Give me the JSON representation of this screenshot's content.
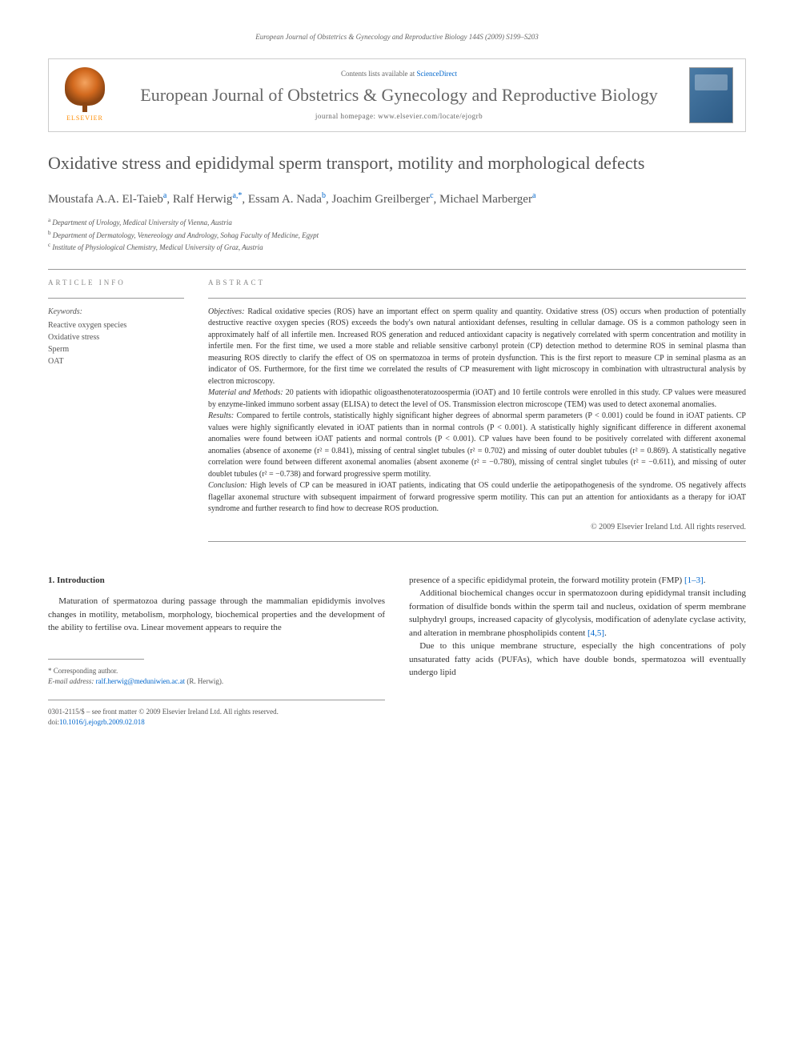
{
  "running_header": "European Journal of Obstetrics & Gynecology and Reproductive Biology 144S (2009) S199–S203",
  "journal_box": {
    "elsevier_label": "ELSEVIER",
    "contents_prefix": "Contents lists available at ",
    "contents_link": "ScienceDirect",
    "journal_name": "European Journal of Obstetrics & Gynecology and Reproductive Biology",
    "homepage_prefix": "journal homepage: ",
    "homepage_url": "www.elsevier.com/locate/ejogrb"
  },
  "title": "Oxidative stress and epididymal sperm transport, motility and morphological defects",
  "authors": [
    {
      "name": "Moustafa A.A. El-Taieb",
      "sup": "a"
    },
    {
      "name": "Ralf Herwig",
      "sup": "a,*"
    },
    {
      "name": "Essam A. Nada",
      "sup": "b"
    },
    {
      "name": "Joachim Greilberger",
      "sup": "c"
    },
    {
      "name": "Michael Marberger",
      "sup": "a"
    }
  ],
  "affiliations": [
    {
      "sup": "a",
      "text": "Department of Urology, Medical University of Vienna, Austria"
    },
    {
      "sup": "b",
      "text": "Department of Dermatology, Venereology and Andrology, Sohag Faculty of Medicine, Egypt"
    },
    {
      "sup": "c",
      "text": "Institute of Physiological Chemistry, Medical University of Graz, Austria"
    }
  ],
  "article_info_header": "ARTICLE INFO",
  "keywords_label": "Keywords:",
  "keywords": [
    "Reactive oxygen species",
    "Oxidative stress",
    "Sperm",
    "OAT"
  ],
  "abstract_header": "ABSTRACT",
  "abstract": {
    "objectives_label": "Objectives:",
    "objectives": " Radical oxidative species (ROS) have an important effect on sperm quality and quantity. Oxidative stress (OS) occurs when production of potentially destructive reactive oxygen species (ROS) exceeds the body's own natural antioxidant defenses, resulting in cellular damage. OS is a common pathology seen in approximately half of all infertile men. Increased ROS generation and reduced antioxidant capacity is negatively correlated with sperm concentration and motility in infertile men. For the first time, we used a more stable and reliable sensitive carbonyl protein (CP) detection method to determine ROS in seminal plasma than measuring ROS directly to clarify the effect of OS on spermatozoa in terms of protein dysfunction. This is the first report to measure CP in seminal plasma as an indicator of OS. Furthermore, for the first time we correlated the results of CP measurement with light microscopy in combination with ultrastructural analysis by electron microscopy.",
    "methods_label": "Material and Methods:",
    "methods": " 20 patients with idiopathic oligoasthenoteratozoospermia (iOAT) and 10 fertile controls were enrolled in this study. CP values were measured by enzyme-linked immuno sorbent assay (ELISA) to detect the level of OS. Transmission electron microscope (TEM) was used to detect axonemal anomalies.",
    "results_label": "Results:",
    "results": " Compared to fertile controls, statistically highly significant higher degrees of abnormal sperm parameters (P < 0.001) could be found in iOAT patients. CP values were highly significantly elevated in iOAT patients than in normal controls (P < 0.001). A statistically highly significant difference in different axonemal anomalies were found between iOAT patients and normal controls (P < 0.001). CP values have been found to be positively correlated with different axonemal anomalies (absence of axoneme (r² = 0.841), missing of central singlet tubules (r² = 0.702) and missing of outer doublet tubules (r² = 0.869). A statistically negative correlation were found between different axonemal anomalies (absent axoneme (r² = −0.780), missing of central singlet tubules (r² = −0.611), and missing of outer doublet tubules (r² = −0.738) and forward progressive sperm motility.",
    "conclusion_label": "Conclusion:",
    "conclusion": " High levels of CP can be measured in iOAT patients, indicating that OS could underlie the aetipopathogenesis of the syndrome. OS negatively affects flagellar axonemal structure with subsequent impairment of forward progressive sperm motility. This can put an attention for antioxidants as a therapy for iOAT syndrome and further research to find how to decrease ROS production."
  },
  "copyright": "© 2009 Elsevier Ireland Ltd. All rights reserved.",
  "body": {
    "section_heading": "1. Introduction",
    "p1": "Maturation of spermatozoa during passage through the mammalian epididymis involves changes in motility, metabolism, morphology, biochemical properties and the development of the ability to fertilise ova. Linear movement appears to require the",
    "p2_a": "presence of a specific epididymal protein, the forward motility protein (FMP) ",
    "p2_cite": "[1–3]",
    "p2_b": ".",
    "p3_a": "Additional biochemical changes occur in spermatozoon during epididymal transit including formation of disulfide bonds within the sperm tail and nucleus, oxidation of sperm membrane sulphydryl groups, increased capacity of glycolysis, modification of adenylate cyclase activity, and alteration in membrane phospholipids content ",
    "p3_cite": "[4,5]",
    "p3_b": ".",
    "p4": "Due to this unique membrane structure, especially the high concentrations of poly unsaturated fatty acids (PUFAs), which have double bonds, spermatozoa will eventually undergo lipid"
  },
  "corresponding": {
    "label": "* Corresponding author.",
    "email_label": "E-mail address: ",
    "email": "ralf.herwig@meduniwien.ac.at",
    "email_suffix": " (R. Herwig)."
  },
  "footer": {
    "issn": "0301-2115/$ – see front matter © 2009 Elsevier Ireland Ltd. All rights reserved.",
    "doi_label": "doi:",
    "doi": "10.1016/j.ejogrb.2009.02.018"
  }
}
